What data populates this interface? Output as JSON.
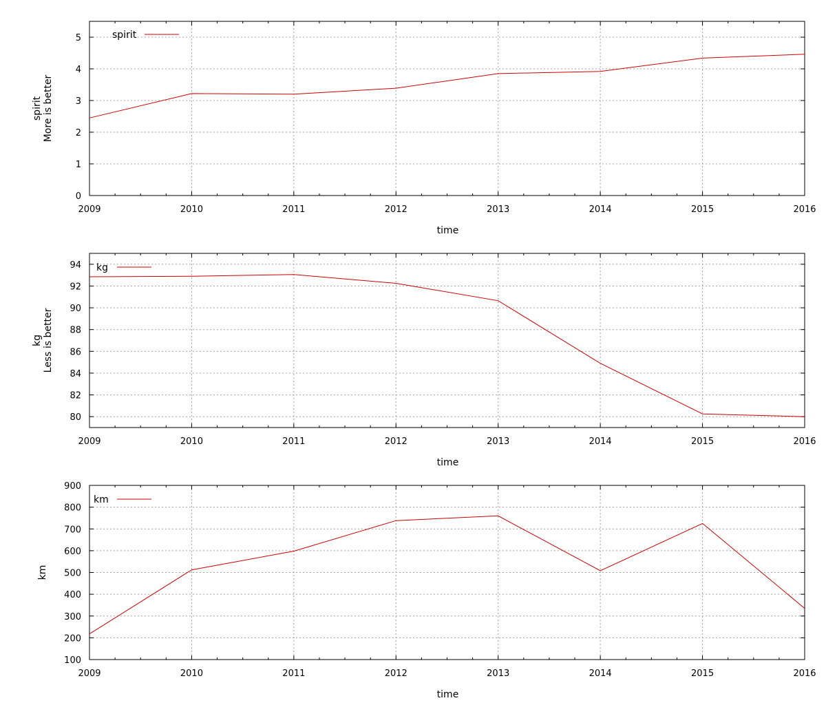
{
  "chart_data": [
    {
      "type": "line",
      "x": [
        2009,
        2010,
        2011,
        2012,
        2013,
        2014,
        2015,
        2016
      ],
      "x_ticks": [
        "2009",
        "2010",
        "2011",
        "2012",
        "2013",
        "2014",
        "2015",
        "2016"
      ],
      "xlim": [
        2009,
        2016
      ],
      "xlabel": "time",
      "ylabel": [
        "spirit",
        "More is better"
      ],
      "ylim": [
        0,
        5.5
      ],
      "y_ticks": [
        0,
        1,
        2,
        3,
        4,
        5
      ],
      "y_tick_labels": [
        "0",
        "1",
        "2",
        "3",
        "4",
        "5"
      ],
      "grid": true,
      "legend_position": "top-left",
      "series": [
        {
          "name": "spirit",
          "color": "#cc0000",
          "values": [
            2.45,
            3.22,
            3.2,
            3.39,
            3.85,
            3.92,
            4.34,
            4.46
          ]
        }
      ]
    },
    {
      "type": "line",
      "x": [
        2009,
        2010,
        2011,
        2012,
        2013,
        2014,
        2015,
        2016
      ],
      "x_ticks": [
        "2009",
        "2010",
        "2011",
        "2012",
        "2013",
        "2014",
        "2015",
        "2016"
      ],
      "xlim": [
        2009,
        2016
      ],
      "xlabel": "time",
      "ylabel": [
        "kg",
        "Less is better"
      ],
      "ylim": [
        79,
        95
      ],
      "y_ticks": [
        80,
        82,
        84,
        86,
        88,
        90,
        92,
        94
      ],
      "y_tick_labels": [
        "80",
        "82",
        "84",
        "86",
        "88",
        "90",
        "92",
        "94"
      ],
      "grid": true,
      "legend_position": "top-left",
      "series": [
        {
          "name": "kg",
          "color": "#cc0000",
          "values": [
            92.85,
            92.9,
            93.05,
            92.25,
            90.65,
            84.9,
            80.25,
            80.0
          ]
        }
      ]
    },
    {
      "type": "line",
      "x": [
        2009,
        2010,
        2011,
        2012,
        2013,
        2014,
        2015,
        2016
      ],
      "x_ticks": [
        "2009",
        "2010",
        "2011",
        "2012",
        "2013",
        "2014",
        "2015",
        "2016"
      ],
      "xlim": [
        2009,
        2016
      ],
      "xlabel": "time",
      "ylabel": [
        "km"
      ],
      "ylim": [
        100,
        900
      ],
      "y_ticks": [
        100,
        200,
        300,
        400,
        500,
        600,
        700,
        800,
        900
      ],
      "y_tick_labels": [
        "100",
        "200",
        "300",
        "400",
        "500",
        "600",
        "700",
        "800",
        "900"
      ],
      "grid": true,
      "legend_position": "top-left",
      "series": [
        {
          "name": "km",
          "color": "#cc0000",
          "values": [
            218,
            512,
            598,
            738,
            760,
            508,
            725,
            335
          ]
        }
      ]
    }
  ]
}
